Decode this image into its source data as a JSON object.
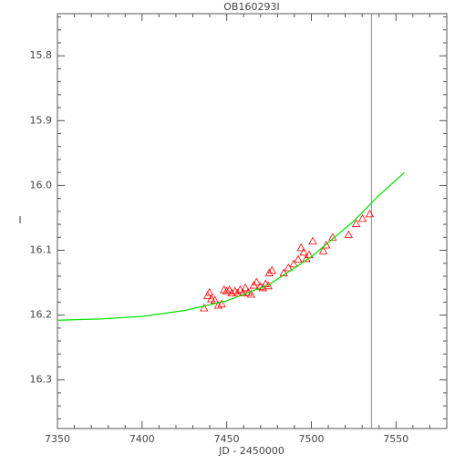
{
  "chart_data": {
    "type": "scatter",
    "title": "OB160293I",
    "x_label": "JD - 2450000",
    "y_label": "I",
    "xlim": [
      7350,
      7580
    ],
    "ylim": [
      16.375,
      15.735
    ],
    "xticks": [
      7350,
      7400,
      7450,
      7500,
      7550
    ],
    "yticks": [
      15.8,
      15.9,
      {
        "value": 16,
        "label": "16.0"
      },
      16.1,
      16.2,
      16.3
    ],
    "xminor": 5,
    "yminor": 5,
    "series": [
      {
        "color": "#ff0000",
        "marker": "triangle",
        "x": [
          7436.6,
          7438.7,
          7439.8,
          7440.9,
          7443,
          7445,
          7447,
          7448.4,
          7450,
          7451.6,
          7453,
          7455,
          7456.4,
          7458,
          7459.6,
          7461,
          7462.8,
          7464.4,
          7466,
          7467.6,
          7469.8,
          7471.4,
          7473,
          7474.6,
          7475.1,
          7476.7,
          7483.7,
          7486.4,
          7489.6,
          7492.2,
          7493.9,
          7495.5,
          7497,
          7498.7,
          7500.8,
          7507,
          7508.8,
          7512.6,
          7522,
          7526.5,
          7530.2,
          7534.5
        ],
        "values": [
          16.189,
          16.17,
          16.165,
          16.175,
          16.177,
          16.185,
          16.183,
          16.161,
          16.163,
          16.161,
          16.166,
          16.163,
          16.166,
          16.161,
          16.166,
          16.158,
          16.165,
          16.168,
          16.154,
          16.149,
          16.156,
          16.158,
          16.152,
          16.155,
          16.135,
          16.131,
          16.135,
          16.127,
          16.121,
          16.114,
          16.096,
          16.103,
          16.113,
          16.107,
          16.086,
          16.101,
          16.092,
          16.08,
          16.076,
          16.059,
          16.051,
          16.044
        ]
      },
      {
        "color": "#00e000",
        "marker": "line",
        "x": [
          7350,
          7375,
          7400,
          7425,
          7450,
          7475,
          7500,
          7525,
          7540,
          7555
        ],
        "values": [
          16.208,
          16.206,
          16.202,
          16.193,
          16.178,
          16.153,
          16.11,
          16.055,
          16.015,
          15.98
        ]
      }
    ],
    "vline": {
      "x": 7535.5,
      "color": "#8080ff"
    }
  }
}
